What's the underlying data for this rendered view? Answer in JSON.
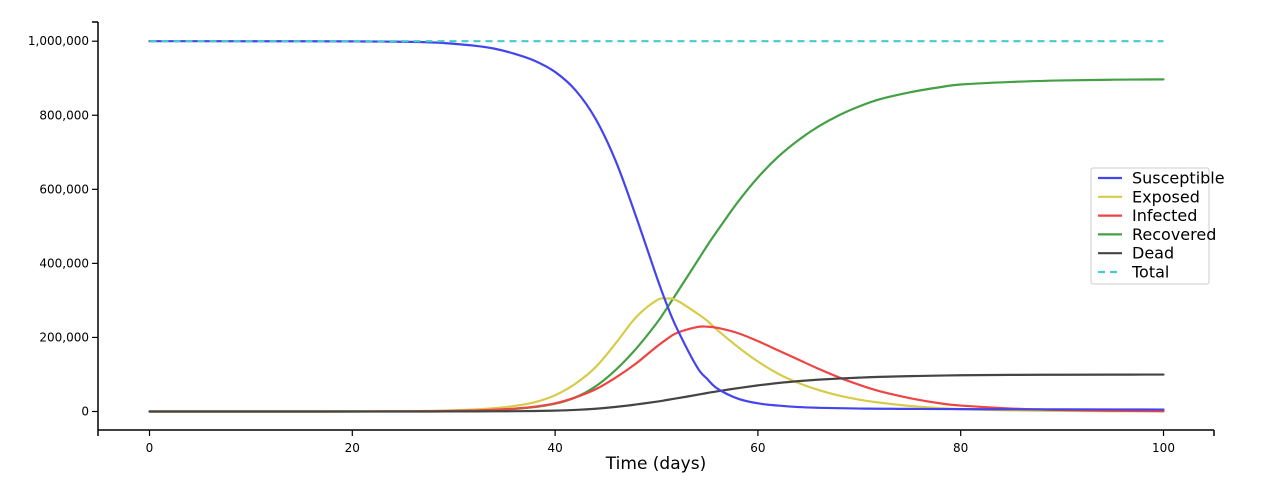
{
  "chart_data": {
    "type": "line",
    "title": "",
    "xlabel": "Time (days)",
    "ylabel": "",
    "xlim": [
      -5,
      105
    ],
    "ylim": [
      -50000,
      1050000
    ],
    "x_ticks": [
      0,
      20,
      40,
      60,
      80,
      100
    ],
    "x_tick_labels": [
      "0",
      "20",
      "40",
      "60",
      "80",
      "100"
    ],
    "y_ticks": [
      0,
      200000,
      400000,
      600000,
      800000,
      1000000
    ],
    "y_tick_labels": [
      "0",
      "200,000",
      "400,000",
      "600,000",
      "800,000",
      "1,000,000"
    ],
    "grid": false,
    "legend_position": "right",
    "x": [
      0,
      5,
      10,
      15,
      20,
      25,
      28,
      30,
      32,
      34,
      36,
      38,
      40,
      42,
      44,
      46,
      48,
      50,
      51,
      52,
      54,
      55,
      56,
      58,
      60,
      62,
      64,
      66,
      68,
      70,
      72,
      75,
      78,
      80,
      85,
      90,
      95,
      100
    ],
    "series": [
      {
        "name": "Susceptible",
        "color": "#4444ee",
        "style": "solid",
        "values": [
          1000000,
          999980,
          999950,
          999850,
          999500,
          998500,
          996500,
          993000,
          988000,
          980000,
          966000,
          947000,
          917000,
          868000,
          790000,
          675000,
          525000,
          365000,
          290000,
          225000,
          120000,
          88000,
          62000,
          35000,
          22000,
          16000,
          12000,
          10000,
          9000,
          8000,
          7500,
          7000,
          6600,
          6400,
          6000,
          5700,
          5500,
          5300
        ]
      },
      {
        "name": "Exposed",
        "color": "#d6cc4a",
        "style": "solid",
        "values": [
          0,
          10,
          30,
          80,
          250,
          800,
          1800,
          3200,
          5500,
          9000,
          15000,
          25000,
          44000,
          75000,
          120000,
          185000,
          255000,
          300000,
          305000,
          300000,
          265000,
          245000,
          220000,
          175000,
          135000,
          102000,
          77000,
          58000,
          43000,
          32000,
          24000,
          15000,
          9000,
          6500,
          3000,
          1500,
          700,
          300
        ]
      },
      {
        "name": "Infected",
        "color": "#ee4444",
        "style": "solid",
        "values": [
          0,
          5,
          15,
          40,
          120,
          400,
          900,
          1600,
          2800,
          4800,
          8000,
          13000,
          22000,
          38000,
          60000,
          92000,
          130000,
          175000,
          195000,
          212000,
          228000,
          229000,
          226000,
          212000,
          190000,
          165000,
          140000,
          115000,
          92000,
          72000,
          55000,
          36000,
          22000,
          16000,
          8000,
          4000,
          2000,
          1000
        ]
      },
      {
        "name": "Recovered",
        "color": "#44a044",
        "style": "solid",
        "values": [
          0,
          0,
          5,
          20,
          80,
          300,
          700,
          1300,
          2200,
          4000,
          7000,
          12000,
          21000,
          38000,
          68000,
          113000,
          170000,
          238000,
          278000,
          320000,
          405000,
          448000,
          488000,
          565000,
          632000,
          688000,
          733000,
          770000,
          800000,
          824000,
          843000,
          862000,
          876000,
          883000,
          890000,
          894000,
          896000,
          897000
        ]
      },
      {
        "name": "Dead",
        "color": "#444444",
        "style": "solid",
        "values": [
          0,
          0,
          0,
          5,
          10,
          30,
          80,
          150,
          250,
          450,
          800,
          1300,
          2300,
          4200,
          7500,
          12500,
          19000,
          26500,
          31000,
          35500,
          45000,
          50000,
          54500,
          63000,
          70500,
          77000,
          82000,
          86000,
          89000,
          91500,
          93500,
          95500,
          97000,
          97800,
          98800,
          99300,
          99600,
          99800
        ]
      },
      {
        "name": "Total",
        "color": "#44cccc",
        "style": "dashed",
        "values": [
          1000000,
          1000000,
          1000000,
          1000000,
          1000000,
          1000000,
          1000000,
          1000000,
          1000000,
          1000000,
          1000000,
          1000000,
          1000000,
          1000000,
          1000000,
          1000000,
          1000000,
          1000000,
          1000000,
          1000000,
          1000000,
          1000000,
          1000000,
          1000000,
          1000000,
          1000000,
          1000000,
          1000000,
          1000000,
          1000000,
          1000000,
          1000000,
          1000000,
          1000000,
          1000000,
          1000000,
          1000000,
          1000000
        ]
      }
    ]
  }
}
